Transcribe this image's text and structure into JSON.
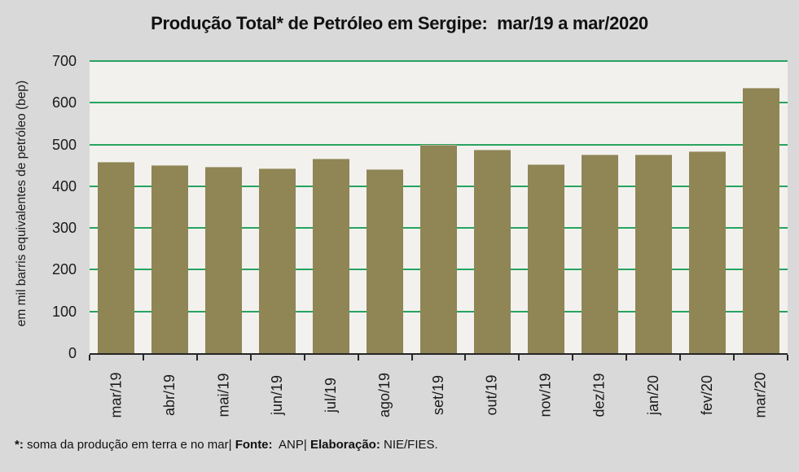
{
  "title": "Produção Total* de Petróleo em Sergipe:  mar/19 a mar/2020",
  "chart_data": {
    "type": "bar",
    "title": "Produção Total* de Petróleo em Sergipe:  mar/19 a mar/2020",
    "categories": [
      "mar/19",
      "abr/19",
      "mai/19",
      "jun/19",
      "jul/19",
      "ago/19",
      "set/19",
      "out/19",
      "nov/19",
      "dez/19",
      "jan/20",
      "fev/20",
      "mar/20"
    ],
    "values": [
      459,
      451,
      446,
      442,
      466,
      440,
      499,
      488,
      452,
      476,
      475,
      484,
      635
    ],
    "xlabel": "",
    "ylabel": "em mil barris equivalentes de petróleo (bep)",
    "ylim": [
      0,
      700
    ],
    "yticks": [
      0,
      100,
      200,
      300,
      400,
      500,
      600,
      700
    ],
    "grid": true,
    "legend": "none",
    "colors": {
      "bar": "#8F8555",
      "gridline": "#27A35F",
      "plot_bg": "#F2F1EE",
      "page_bg": "#D9D9D9",
      "axis": "#262626",
      "text": "#1A1A1A"
    }
  },
  "footnote": {
    "segments": [
      {
        "text": "*:",
        "bold": true
      },
      {
        "text": " soma da produção em terra e no mar| ",
        "bold": false
      },
      {
        "text": "Fonte:",
        "bold": true
      },
      {
        "text": "  ANP| ",
        "bold": false
      },
      {
        "text": "Elaboração:",
        "bold": true
      },
      {
        "text": " NIE/FIES.",
        "bold": false
      }
    ]
  }
}
